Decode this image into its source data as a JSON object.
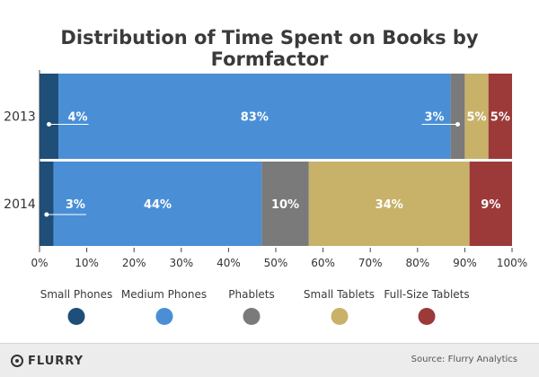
{
  "chart_data": {
    "type": "bar",
    "orientation": "horizontal",
    "stacked": true,
    "title": "Distribution of Time Spent on Books by Formfactor",
    "categories": [
      "2013",
      "2014"
    ],
    "series": [
      {
        "name": "Small Phones",
        "color": "#1f4e79",
        "values": [
          4,
          3
        ],
        "labels": [
          "4%",
          "3%"
        ]
      },
      {
        "name": "Medium Phones",
        "color": "#4a8fd6",
        "values": [
          83,
          44
        ],
        "labels": [
          "83%",
          "44%"
        ]
      },
      {
        "name": "Phablets",
        "color": "#7a7a7a",
        "values": [
          3,
          10
        ],
        "labels": [
          "3%",
          "10%"
        ]
      },
      {
        "name": "Small Tablets",
        "color": "#c8b26a",
        "values": [
          5,
          34
        ],
        "labels": [
          "5%",
          "34%"
        ]
      },
      {
        "name": "Full-Size Tablets",
        "color": "#9c3a3a",
        "values": [
          5,
          9
        ],
        "labels": [
          "5%",
          "9%"
        ]
      }
    ],
    "xlim": [
      0,
      100
    ],
    "xticks": [
      "0%",
      "10%",
      "20%",
      "30%",
      "40%",
      "50%",
      "60%",
      "70%",
      "80%",
      "90%",
      "100%"
    ],
    "legend_position": "bottom"
  },
  "footer": {
    "brand": "FLURRY",
    "source": "Source: Flurry Analytics"
  }
}
